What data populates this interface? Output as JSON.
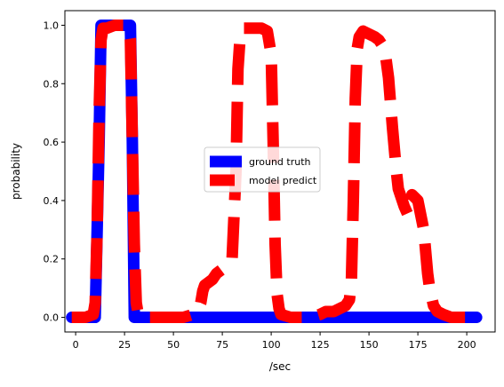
{
  "chart_data": {
    "type": "line",
    "title": "",
    "xlabel": "/sec",
    "ylabel": "probability",
    "xlim": [
      -5.5,
      214.5
    ],
    "ylim": [
      -0.05,
      1.05
    ],
    "x_ticks": [
      0,
      25,
      50,
      75,
      100,
      125,
      150,
      175,
      200
    ],
    "y_ticks": [
      0.0,
      0.2,
      0.4,
      0.6,
      0.8,
      1.0
    ],
    "x_tick_labels": [
      "0",
      "25",
      "50",
      "75",
      "100",
      "125",
      "150",
      "175",
      "200"
    ],
    "y_tick_labels": [
      "0.0",
      "0.2",
      "0.4",
      "0.6",
      "0.8",
      "1.0"
    ],
    "grid": false,
    "legend": "center",
    "series": [
      {
        "name": "ground truth",
        "color": "#0000ff",
        "style": "solid",
        "x": [
          -2,
          10,
          12,
          13,
          28,
          29,
          30,
          205
        ],
        "y": [
          0,
          0,
          0.6,
          1,
          1,
          0.6,
          0,
          0
        ]
      },
      {
        "name": "model predict",
        "color": "#ff0000",
        "style": "dashed",
        "x": [
          -2,
          5,
          9,
          10,
          11,
          12,
          13,
          14,
          16,
          20,
          25,
          27,
          28,
          29,
          30,
          31,
          32,
          35,
          40,
          45,
          50,
          55,
          60,
          62,
          64,
          65,
          66,
          68,
          70,
          72,
          74,
          76,
          78,
          80,
          82,
          83,
          84,
          85,
          86,
          88,
          90,
          95,
          98,
          100,
          101,
          102,
          103,
          104,
          105,
          110,
          115,
          120,
          125,
          128,
          132,
          135,
          138,
          140,
          141,
          142,
          143,
          144,
          145,
          147,
          150,
          153,
          155,
          158,
          160,
          162,
          164,
          165,
          166,
          168,
          170,
          172,
          175,
          178,
          180,
          181,
          182,
          183,
          185,
          188,
          192,
          195,
          200,
          203
        ],
        "y": [
          0,
          0,
          0.01,
          0.05,
          0.3,
          0.7,
          0.95,
          0.99,
          0.99,
          1.0,
          1.0,
          0.99,
          0.95,
          0.6,
          0.25,
          0.05,
          0.01,
          0,
          0,
          0,
          0,
          0,
          0.01,
          0.02,
          0.05,
          0.09,
          0.11,
          0.12,
          0.13,
          0.15,
          0.16,
          0.17,
          0.18,
          0.2,
          0.5,
          0.85,
          0.95,
          0.98,
          0.99,
          0.99,
          0.99,
          0.99,
          0.98,
          0.9,
          0.6,
          0.25,
          0.08,
          0.03,
          0.01,
          0,
          0,
          0,
          0.01,
          0.02,
          0.02,
          0.03,
          0.04,
          0.06,
          0.12,
          0.4,
          0.75,
          0.92,
          0.96,
          0.98,
          0.97,
          0.96,
          0.95,
          0.92,
          0.82,
          0.65,
          0.5,
          0.44,
          0.42,
          0.38,
          0.35,
          0.42,
          0.4,
          0.3,
          0.15,
          0.1,
          0.07,
          0.04,
          0.02,
          0.01,
          0,
          0,
          0,
          0
        ]
      }
    ]
  }
}
